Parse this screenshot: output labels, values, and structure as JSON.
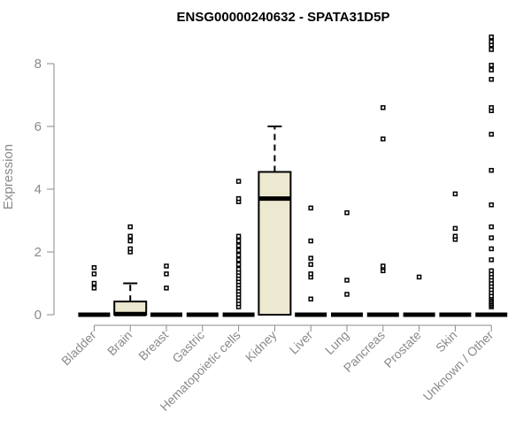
{
  "chart_data": {
    "type": "boxplot",
    "title": "ENSG00000240632 - SPATA31D5P",
    "xlabel": "",
    "ylabel": "Expression",
    "ylim": [
      0,
      8.9
    ],
    "yticks": [
      0,
      2,
      4,
      6,
      8
    ],
    "grid": false,
    "colors": {
      "box_fill": "#ede8d0",
      "line": "#000000",
      "axis": "#8a8a8a"
    },
    "categories": [
      "Bladder",
      "Brain",
      "Breast",
      "Gastric",
      "Hematopoietic cells",
      "Kidney",
      "Liver",
      "Lung",
      "Pancreas",
      "Prostate",
      "Skin",
      "Unknown / Other"
    ],
    "boxes": [
      {
        "category": "Bladder",
        "whisker_low": 0,
        "q1": 0,
        "median": 0,
        "q3": 0,
        "whisker_high": 0,
        "outliers": [
          0.85,
          1.0,
          1.3,
          1.5
        ]
      },
      {
        "category": "Brain",
        "whisker_low": 0,
        "q1": 0,
        "median": 0.02,
        "q3": 0.42,
        "whisker_high": 1.0,
        "outliers": [
          2.0,
          2.1,
          2.35,
          2.5,
          2.8
        ]
      },
      {
        "category": "Breast",
        "whisker_low": 0,
        "q1": 0,
        "median": 0,
        "q3": 0,
        "whisker_high": 0,
        "outliers": [
          0.85,
          1.3,
          1.55
        ]
      },
      {
        "category": "Gastric",
        "whisker_low": 0,
        "q1": 0,
        "median": 0,
        "q3": 0,
        "whisker_high": 0,
        "outliers": []
      },
      {
        "category": "Hematopoietic cells",
        "whisker_low": 0,
        "q1": 0,
        "median": 0,
        "q3": 0,
        "whisker_high": 0,
        "outliers": [
          0.25,
          0.35,
          0.45,
          0.55,
          0.65,
          0.75,
          0.85,
          0.95,
          1.05,
          1.15,
          1.25,
          1.35,
          1.45,
          1.6,
          1.75,
          1.9,
          2.05,
          2.2,
          2.35,
          2.5,
          3.6,
          3.7,
          4.25
        ]
      },
      {
        "category": "Kidney",
        "whisker_low": 0,
        "q1": 0,
        "median": 3.7,
        "q3": 4.55,
        "whisker_high": 6.0,
        "outliers": []
      },
      {
        "category": "Liver",
        "whisker_low": 0,
        "q1": 0,
        "median": 0,
        "q3": 0,
        "whisker_high": 0,
        "outliers": [
          0.5,
          1.2,
          1.3,
          1.6,
          1.8,
          2.35,
          3.4
        ]
      },
      {
        "category": "Lung",
        "whisker_low": 0,
        "q1": 0,
        "median": 0,
        "q3": 0,
        "whisker_high": 0,
        "outliers": [
          0.65,
          1.1,
          3.25
        ]
      },
      {
        "category": "Pancreas",
        "whisker_low": 0,
        "q1": 0,
        "median": 0,
        "q3": 0,
        "whisker_high": 0,
        "outliers": [
          1.4,
          1.5,
          1.55,
          5.6,
          6.6
        ]
      },
      {
        "category": "Prostate",
        "whisker_low": 0,
        "q1": 0,
        "median": 0,
        "q3": 0,
        "whisker_high": 0,
        "outliers": [
          1.2
        ]
      },
      {
        "category": "Skin",
        "whisker_low": 0,
        "q1": 0,
        "median": 0,
        "q3": 0,
        "whisker_high": 0,
        "outliers": [
          2.4,
          2.5,
          2.75,
          3.85
        ]
      },
      {
        "category": "Unknown / Other",
        "whisker_low": 0,
        "q1": 0,
        "median": 0,
        "q3": 0,
        "whisker_high": 0,
        "outliers": [
          0.25,
          0.3,
          0.35,
          0.4,
          0.45,
          0.5,
          0.55,
          0.6,
          0.7,
          0.8,
          0.9,
          1.0,
          1.1,
          1.2,
          1.3,
          1.4,
          1.75,
          2.1,
          2.45,
          2.8,
          3.5,
          4.6,
          5.75,
          6.5,
          6.6,
          7.5,
          7.8,
          7.95,
          8.45,
          8.6,
          8.7,
          8.85
        ]
      }
    ]
  }
}
